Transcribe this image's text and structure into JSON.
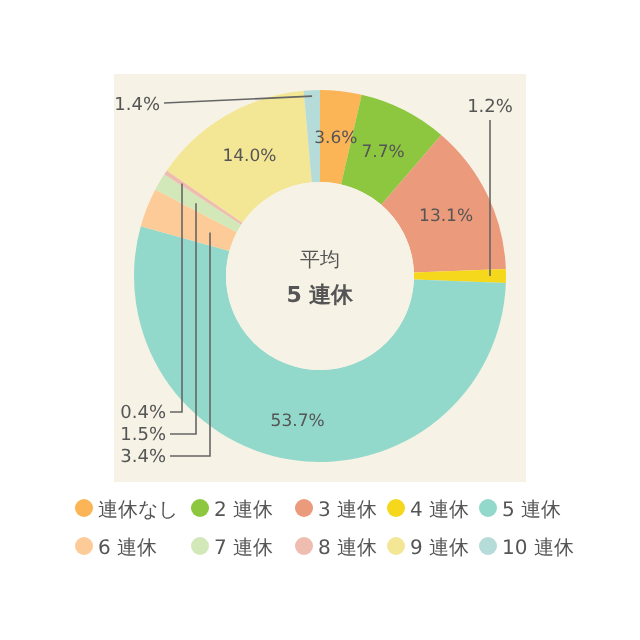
{
  "chart_data": {
    "type": "donut",
    "categories": [
      "連休なし",
      "2 連休",
      "3 連休",
      "4 連休",
      "5 連休",
      "6 連休",
      "7 連休",
      "8 連休",
      "9 連休",
      "10 連休"
    ],
    "values": [
      3.6,
      7.7,
      13.1,
      1.2,
      53.7,
      3.4,
      1.5,
      0.4,
      14.0,
      1.4
    ],
    "value_labels": [
      "3.6%",
      "7.7%",
      "13.1%",
      "1.2%",
      "53.7%",
      "3.4%",
      "1.5%",
      "0.4%",
      "14.0%",
      "1.4%"
    ],
    "colors": [
      "#fbb456",
      "#8dc63f",
      "#ec9a7c",
      "#f5d81c",
      "#92d9cc",
      "#fdcb98",
      "#d3e8b8",
      "#efbdb0",
      "#f3e796",
      "#b5dcd8"
    ],
    "annotations": [
      "平均",
      "5 連休"
    ],
    "legend": "bottom"
  }
}
